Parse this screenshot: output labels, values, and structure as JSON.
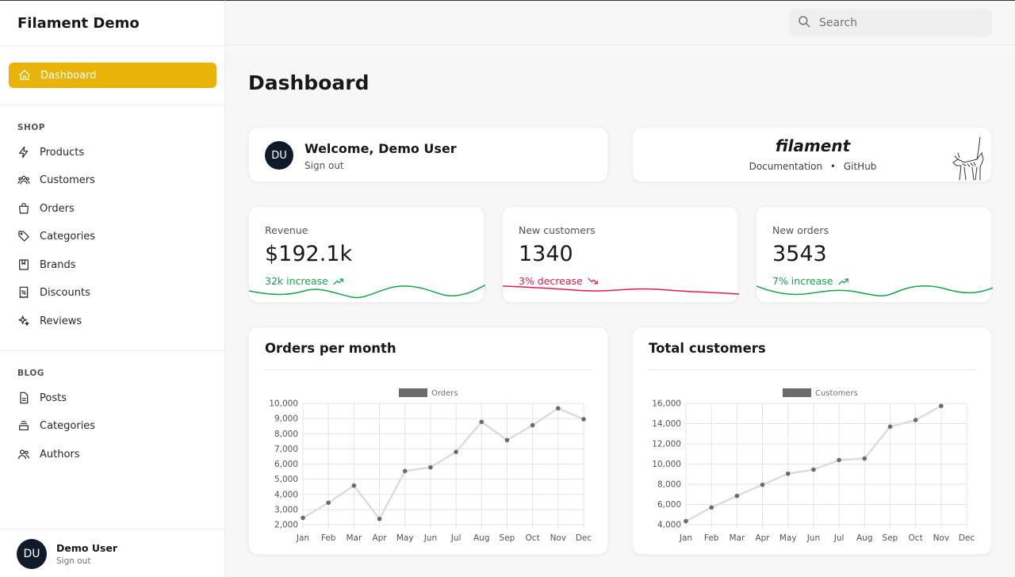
{
  "app": {
    "brand": "Filament Demo"
  },
  "sidebar": {
    "active": {
      "label": "Dashboard",
      "icon": "home-icon"
    },
    "groups": [
      {
        "label": "SHOP",
        "items": [
          {
            "label": "Products",
            "icon": "bolt-icon"
          },
          {
            "label": "Customers",
            "icon": "users-icon"
          },
          {
            "label": "Orders",
            "icon": "shopping-bag-icon"
          },
          {
            "label": "Categories",
            "icon": "tag-icon"
          },
          {
            "label": "Brands",
            "icon": "book-icon"
          },
          {
            "label": "Discounts",
            "icon": "receipt-percent-icon"
          },
          {
            "label": "Reviews",
            "icon": "sparkles-icon"
          }
        ]
      },
      {
        "label": "BLOG",
        "items": [
          {
            "label": "Posts",
            "icon": "document-icon"
          },
          {
            "label": "Categories",
            "icon": "inbox-stack-icon"
          },
          {
            "label": "Authors",
            "icon": "user-group-icon"
          }
        ]
      }
    ],
    "user": {
      "initials": "DU",
      "name": "Demo User",
      "action": "Sign out"
    }
  },
  "topbar": {
    "search_placeholder": "Search"
  },
  "page": {
    "title": "Dashboard"
  },
  "welcome": {
    "initials": "DU",
    "title": "Welcome, Demo User",
    "action": "Sign out"
  },
  "filament": {
    "logo": "filament",
    "docs": "Documentation",
    "dot": "•",
    "github": "GitHub"
  },
  "stats": [
    {
      "label": "Revenue",
      "value": "$192.1k",
      "delta": "32k increase",
      "trend": "up",
      "color": "#16a34a"
    },
    {
      "label": "New customers",
      "value": "1340",
      "delta": "3% decrease",
      "trend": "down",
      "color": "#e11d48"
    },
    {
      "label": "New orders",
      "value": "3543",
      "delta": "7% increase",
      "trend": "up",
      "color": "#16a34a"
    }
  ],
  "colors": {
    "accent": "#e9b407",
    "up": "#16a34a",
    "down": "#e11d48"
  },
  "chart_data": [
    {
      "type": "line",
      "title": "Orders per month",
      "categories": [
        "Jan",
        "Feb",
        "Mar",
        "Apr",
        "May",
        "Jun",
        "Jul",
        "Aug",
        "Sep",
        "Oct",
        "Nov",
        "Dec"
      ],
      "series": [
        {
          "name": "Orders",
          "values": [
            2450,
            3450,
            4580,
            2380,
            5540,
            5780,
            6800,
            8780,
            7580,
            8560,
            9680,
            8960
          ]
        }
      ],
      "ylim": [
        2000,
        10000
      ],
      "yticks": [
        "2,000",
        "3,000",
        "4,000",
        "5,000",
        "6,000",
        "7,000",
        "8,000",
        "9,000",
        "10,000"
      ],
      "grid": true,
      "legend": "top-center"
    },
    {
      "type": "line",
      "title": "Total customers",
      "categories": [
        "Jan",
        "Feb",
        "Mar",
        "Apr",
        "May",
        "Jun",
        "Jul",
        "Aug",
        "Sep",
        "Oct",
        "Nov",
        "Dec"
      ],
      "series": [
        {
          "name": "Customers",
          "values": [
            4350,
            5700,
            6850,
            7950,
            9050,
            9450,
            10400,
            10550,
            13700,
            14350,
            15750,
            null
          ]
        }
      ],
      "ylim": [
        4000,
        16000
      ],
      "yticks": [
        "4,000",
        "6,000",
        "8,000",
        "10,000",
        "12,000",
        "14,000",
        "16,000"
      ],
      "grid": true,
      "legend": "top-center"
    }
  ]
}
